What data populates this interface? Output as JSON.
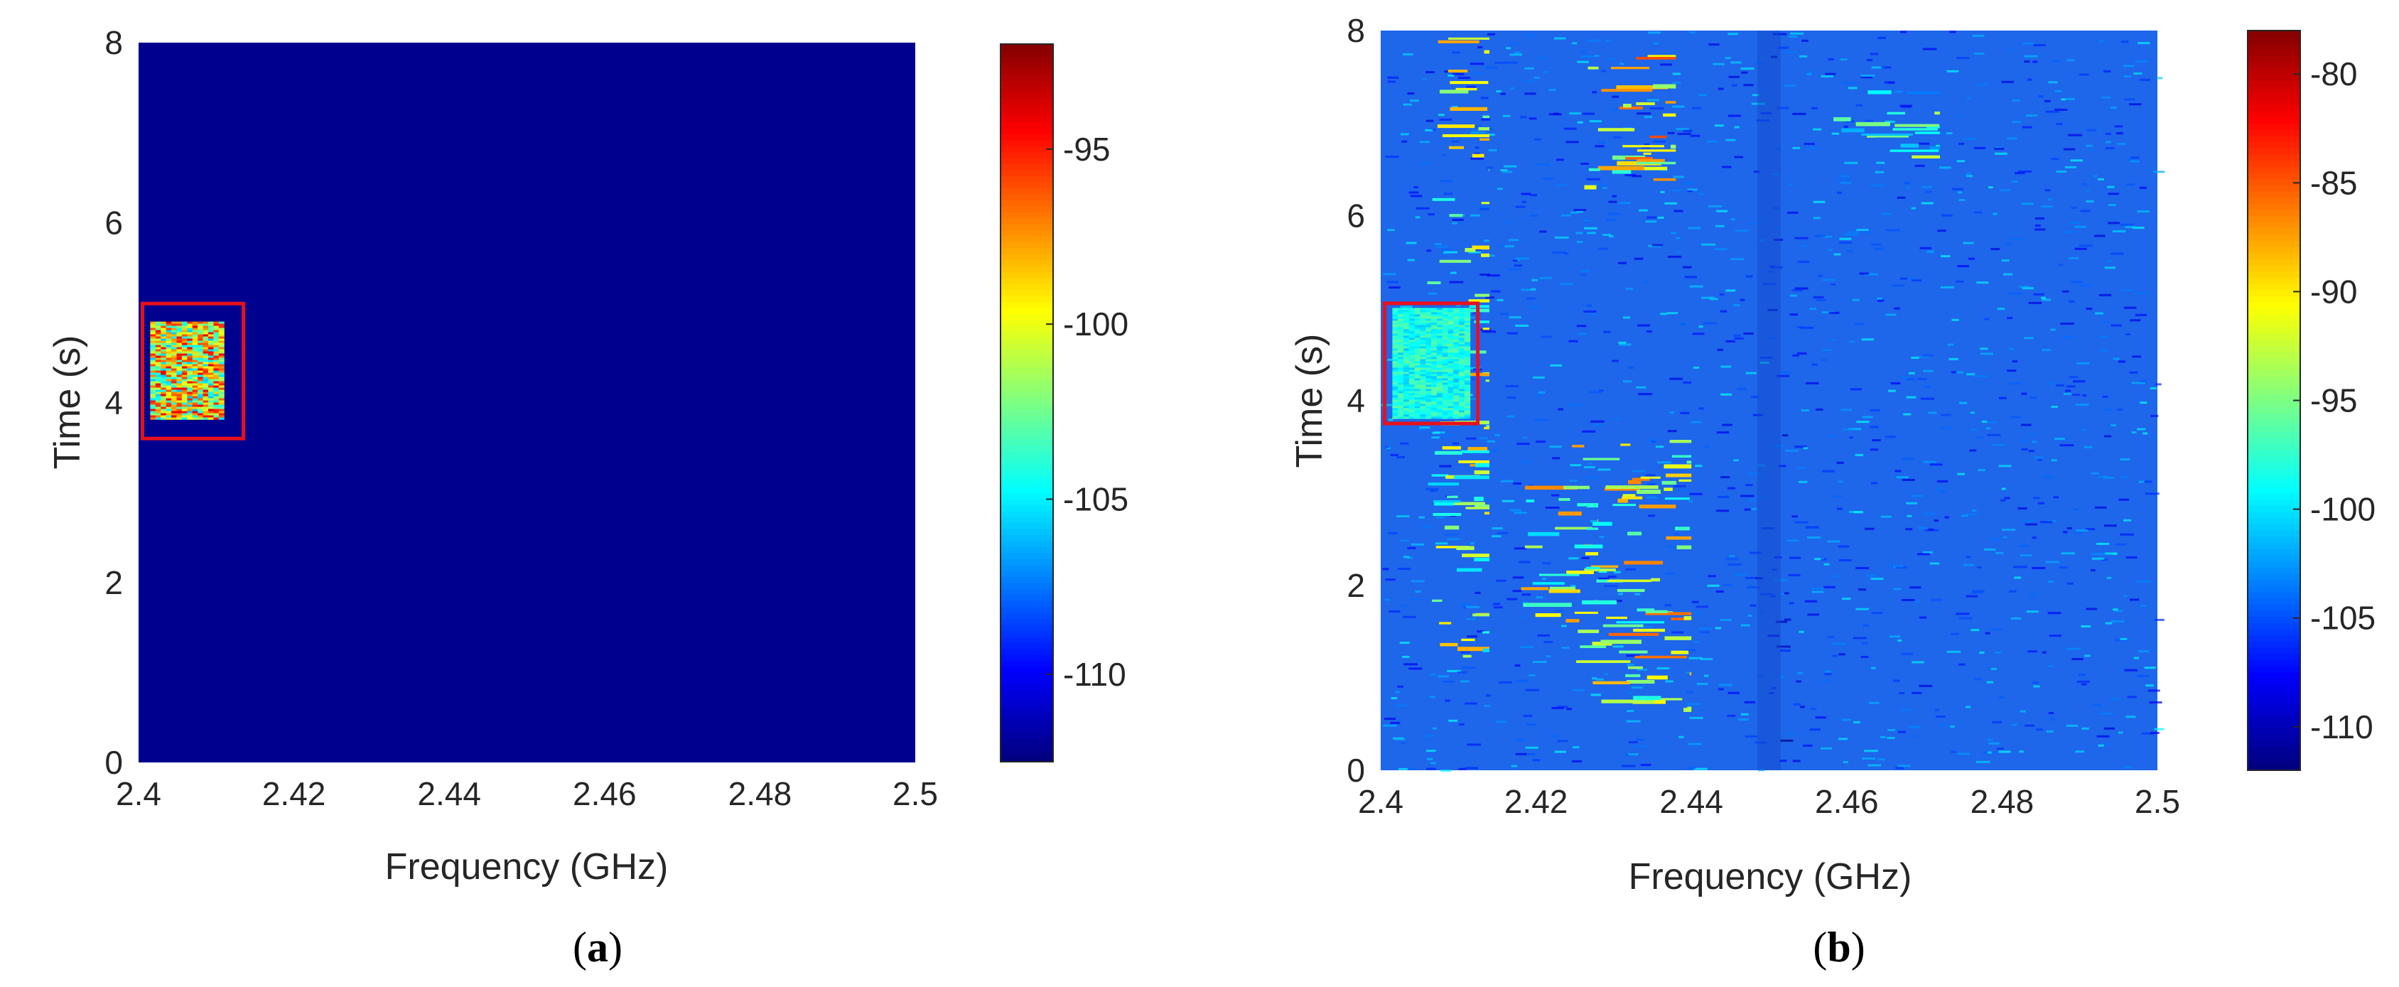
{
  "chart_data": [
    {
      "type": "heatmap",
      "panel_label": "a",
      "xlabel": "Frequency (GHz)",
      "ylabel": "Time (s)",
      "xlim": [
        2.4,
        2.5
      ],
      "ylim": [
        0,
        8
      ],
      "xticks": [
        "2.4",
        "2.42",
        "2.44",
        "2.46",
        "2.48",
        "2.5"
      ],
      "xtick_values": [
        2.4,
        2.42,
        2.44,
        2.46,
        2.48,
        2.5
      ],
      "yticks": [
        "0",
        "2",
        "4",
        "6",
        "8"
      ],
      "ytick_values": [
        0,
        2,
        4,
        6,
        8
      ],
      "colormap": "jet",
      "background_level": -112.5,
      "colorbar": {
        "range": [
          -112.5,
          -92
        ],
        "ticks": [
          "-95",
          "-100",
          "-105",
          "-110"
        ],
        "tick_values": [
          -95,
          -100,
          -105,
          -110
        ]
      },
      "signal_region": {
        "freq_range": [
          2.4015,
          2.411
        ],
        "time_range": [
          3.8,
          4.9
        ],
        "level_range": [
          -106,
          -94
        ]
      },
      "highlight_box": {
        "freq_range": [
          2.4005,
          2.4135
        ],
        "time_range": [
          3.6,
          5.1
        ],
        "color": "#e8101c"
      }
    },
    {
      "type": "heatmap",
      "panel_label": "b",
      "xlabel": "Frequency (GHz)",
      "ylabel": "Time (s)",
      "xlim": [
        2.4,
        2.5
      ],
      "ylim": [
        0,
        8
      ],
      "xticks": [
        "2.4",
        "2.42",
        "2.44",
        "2.46",
        "2.48",
        "2.5"
      ],
      "xtick_values": [
        2.4,
        2.42,
        2.44,
        2.46,
        2.48,
        2.5
      ],
      "yticks": [
        "0",
        "2",
        "4",
        "6",
        "8"
      ],
      "ytick_values": [
        0,
        2,
        4,
        6,
        8
      ],
      "colormap": "jet",
      "background_level": -104,
      "colorbar": {
        "range": [
          -112,
          -78
        ],
        "ticks": [
          "-80",
          "-85",
          "-90",
          "-95",
          "-100",
          "-105",
          "-110"
        ],
        "tick_values": [
          -80,
          -85,
          -90,
          -95,
          -100,
          -105,
          -110
        ]
      },
      "signal_region": {
        "freq_range": [
          2.4015,
          2.4115
        ],
        "time_range": [
          3.8,
          5.0
        ],
        "level_range": [
          -101,
          -96
        ]
      },
      "highlight_box": {
        "freq_range": [
          2.4005,
          2.4125
        ],
        "time_range": [
          3.75,
          5.05
        ],
        "color": "#e8101c"
      },
      "activity_bands": [
        {
          "freq_range": [
            2.406,
            2.414
          ],
          "time_range": [
            1.2,
            8.0
          ],
          "level": -93
        },
        {
          "freq_range": [
            2.418,
            2.428
          ],
          "time_range": [
            1.6,
            3.2
          ],
          "level": -92
        },
        {
          "freq_range": [
            2.424,
            2.44
          ],
          "time_range": [
            0.6,
            3.6
          ],
          "level": -91
        },
        {
          "freq_range": [
            2.426,
            2.438
          ],
          "time_range": [
            6.3,
            7.9
          ],
          "level": -90
        },
        {
          "freq_range": [
            2.456,
            2.472
          ],
          "time_range": [
            6.6,
            7.4
          ],
          "level": -96
        }
      ]
    }
  ]
}
